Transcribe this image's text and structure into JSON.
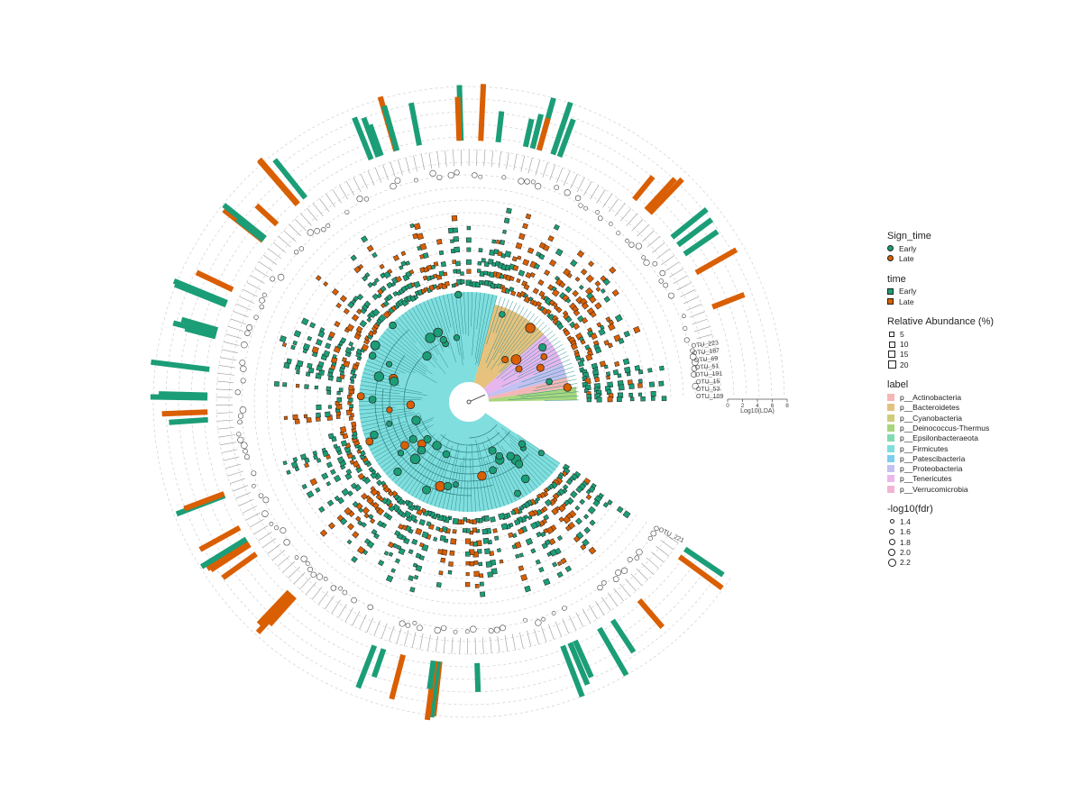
{
  "colors": {
    "early": "#1b9e77",
    "late": "#d95f02",
    "grid": "#c8c8c8"
  },
  "legend": {
    "sign_time": {
      "title": "Sign_time",
      "items": [
        "Early",
        "Late"
      ]
    },
    "time": {
      "title": "time",
      "items": [
        "Early",
        "Late"
      ]
    },
    "abundance": {
      "title": "Relative Abundance (%)",
      "items": [
        "5",
        "10",
        "15",
        "20"
      ]
    },
    "label": {
      "title": "label",
      "items": [
        {
          "name": "p__Actinobacteria",
          "color": "#f4b6b6"
        },
        {
          "name": "p__Bacteroidetes",
          "color": "#e3c17e"
        },
        {
          "name": "p__Cyanobacteria",
          "color": "#cfcc7a"
        },
        {
          "name": "p__Deinococcus-Thermus",
          "color": "#a8d67c"
        },
        {
          "name": "p__Epsilonbacteraeota",
          "color": "#7fdcb2"
        },
        {
          "name": "p__Firmicutes",
          "color": "#7fdede"
        },
        {
          "name": "p__Patescibacteria",
          "color": "#7ccfee"
        },
        {
          "name": "p__Proteobacteria",
          "color": "#c3c0f2"
        },
        {
          "name": "p__Tenericutes",
          "color": "#eab8ee"
        },
        {
          "name": "p__Verrucomicrobia",
          "color": "#f3b5d6"
        }
      ]
    },
    "fdr": {
      "title": "-log10(fdr)",
      "items": [
        "1.4",
        "1.6",
        "1.8",
        "2.0",
        "2.2"
      ]
    }
  },
  "lda_axis": {
    "title": "Log10(LDA)",
    "ticks": [
      "0",
      "2",
      "4",
      "6",
      "8"
    ]
  },
  "tip_labels_end": [
    "OTU_221"
  ],
  "tip_labels_start": [
    "OTU_109",
    "OTU_53",
    "OTU_15",
    "OTU_191",
    "OTU_51",
    "OTU_69",
    "OTU_187",
    "OTU_223"
  ]
}
